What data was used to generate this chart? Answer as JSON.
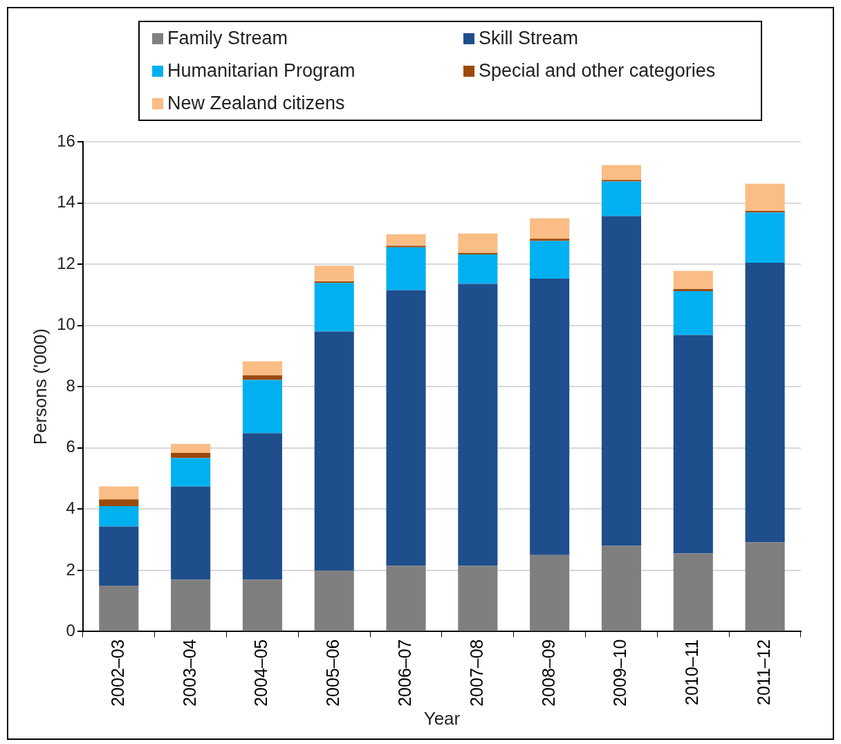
{
  "chart_data": {
    "type": "bar",
    "stacked": true,
    "xlabel": "Year",
    "ylabel": "Persons ('000)",
    "categories": [
      "2002–03",
      "2003–04",
      "2004–05",
      "2005–06",
      "2006–07",
      "2007–08",
      "2008–09",
      "2009–10",
      "2010–11",
      "2011–12"
    ],
    "series": [
      {
        "name": "Family Stream",
        "color": "#7f7f7f",
        "values": [
          1.5,
          1.7,
          1.7,
          2.0,
          2.15,
          2.15,
          2.5,
          2.8,
          2.55,
          2.92
        ]
      },
      {
        "name": "Skill Stream",
        "color": "#1f4e8c",
        "values": [
          1.93,
          3.04,
          4.78,
          7.8,
          9.0,
          9.21,
          9.03,
          10.77,
          7.14,
          9.13
        ]
      },
      {
        "name": "Humanitarian Program",
        "color": "#00b0f0",
        "values": [
          0.67,
          0.93,
          1.74,
          1.59,
          1.4,
          0.96,
          1.23,
          1.13,
          1.43,
          1.64
        ]
      },
      {
        "name": "Special and other categories",
        "color": "#9c4a0c",
        "values": [
          0.22,
          0.17,
          0.15,
          0.05,
          0.05,
          0.05,
          0.07,
          0.05,
          0.07,
          0.05
        ]
      },
      {
        "name": "New Zealand citizens",
        "color": "#f9bd85",
        "values": [
          0.42,
          0.29,
          0.46,
          0.51,
          0.38,
          0.63,
          0.67,
          0.49,
          0.59,
          0.89
        ]
      }
    ],
    "ylim": [
      0,
      16
    ],
    "yticks": [
      0,
      2,
      4,
      6,
      8,
      10,
      12,
      14,
      16
    ],
    "grid": "y",
    "legend": "top"
  }
}
